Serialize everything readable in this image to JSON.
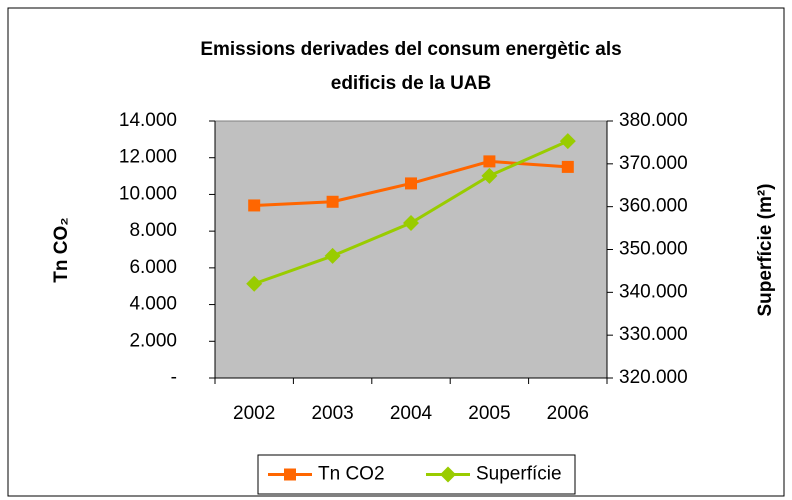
{
  "chart_data": {
    "type": "line",
    "title": [
      "Emissions derivades del consum energètic als",
      "edificis de la UAB"
    ],
    "y_label": "Tn CO₂",
    "y2_label": "Superfície (m²)",
    "categories": [
      "2002",
      "2003",
      "2004",
      "2005",
      "2006"
    ],
    "series": [
      {
        "name": "Tn CO2",
        "color": "#ff6600",
        "marker": "square",
        "values": [
          9400,
          9600,
          10600,
          11800,
          11500
        ]
      },
      {
        "name": "Superfície",
        "color": "#99cc00",
        "marker": "diamond",
        "axis": "y2",
        "values": [
          342000,
          348500,
          356200,
          367200,
          375300
        ]
      }
    ],
    "ylim": [
      0,
      14000
    ],
    "yticks": [
      {
        "value": 0,
        "label": "-"
      },
      {
        "value": 2000,
        "label": "2.000"
      },
      {
        "value": 4000,
        "label": "4.000"
      },
      {
        "value": 6000,
        "label": "6.000"
      },
      {
        "value": 8000,
        "label": "8.000"
      },
      {
        "value": 10000,
        "label": "10.000"
      },
      {
        "value": 12000,
        "label": "12.000"
      },
      {
        "value": 14000,
        "label": "14.000"
      }
    ],
    "y2lim": [
      320000,
      380000
    ],
    "y2ticks": [
      {
        "value": 320000,
        "label": "320.000"
      },
      {
        "value": 330000,
        "label": "330.000"
      },
      {
        "value": 340000,
        "label": "340.000"
      },
      {
        "value": 350000,
        "label": "350.000"
      },
      {
        "value": 360000,
        "label": "360.000"
      },
      {
        "value": 370000,
        "label": "370.000"
      },
      {
        "value": 380000,
        "label": "380.000"
      }
    ],
    "plot_background": "#c0c0c0",
    "grid": false,
    "legend": "bottom"
  }
}
